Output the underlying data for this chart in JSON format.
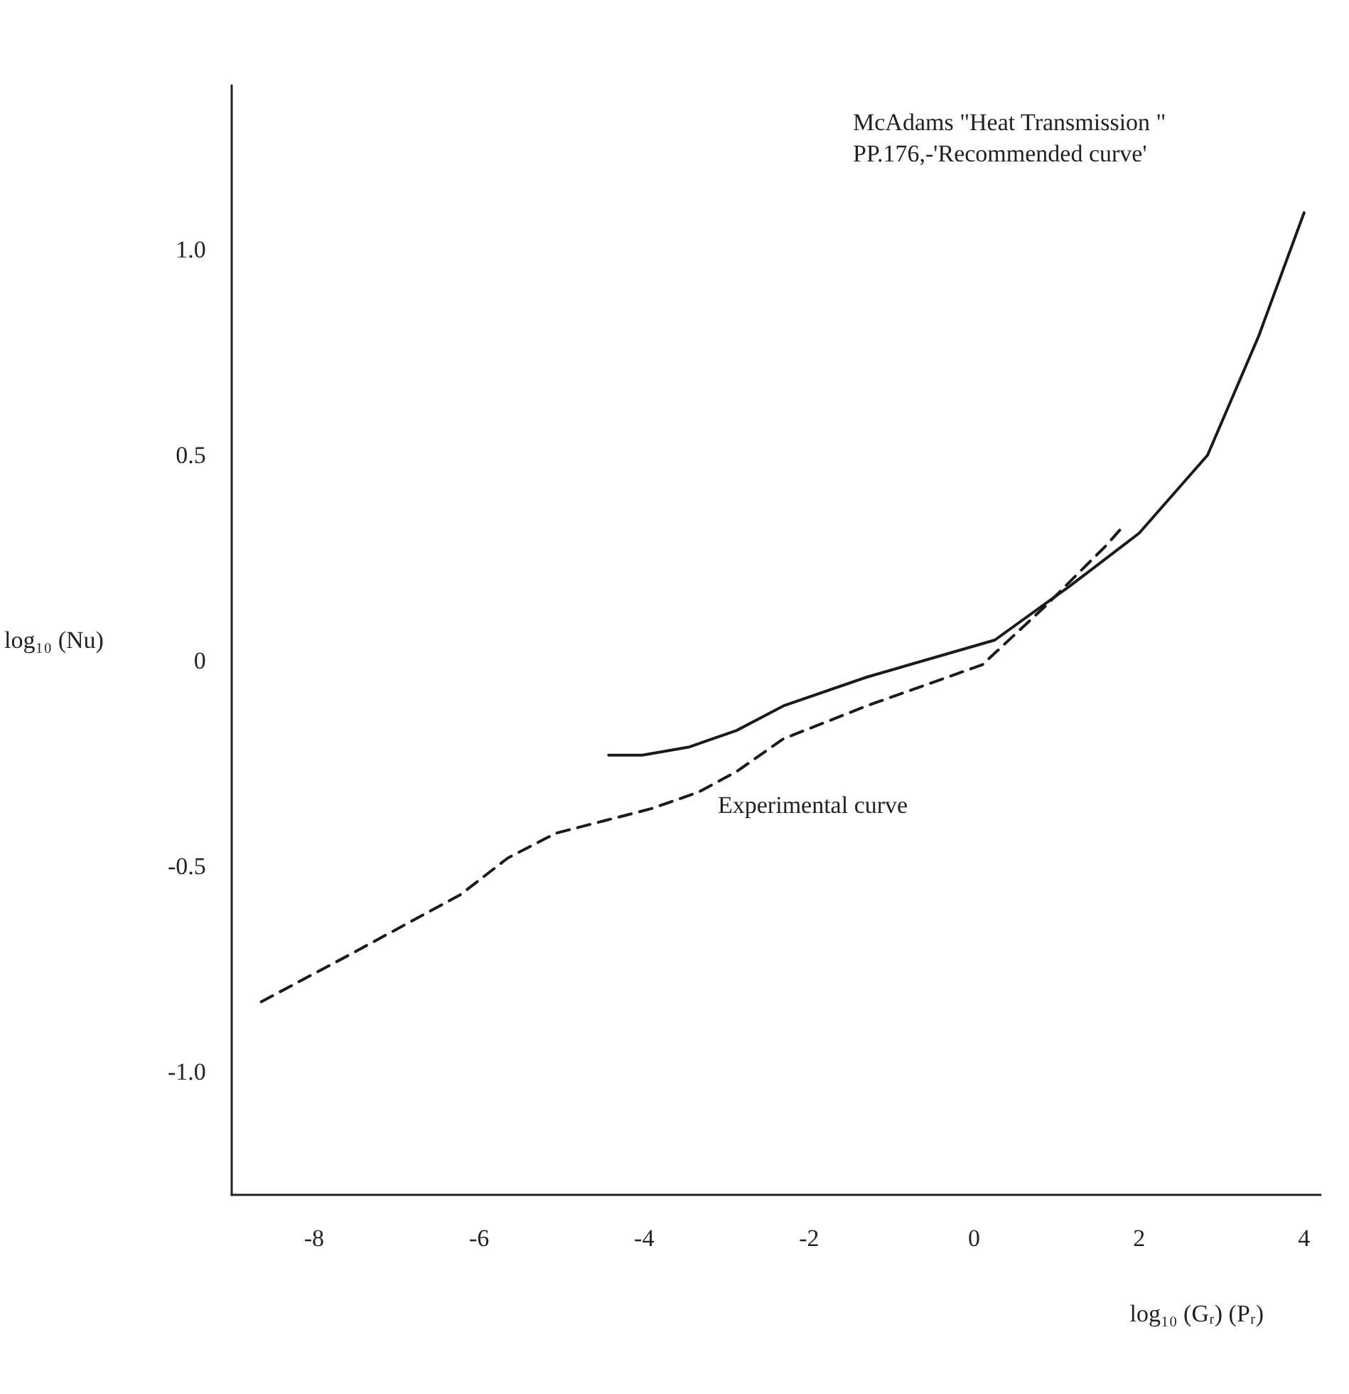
{
  "chart_data": {
    "type": "line",
    "xlabel": "log₁₀ (Gᵣ) (Pᵣ)",
    "ylabel": "log₁₀ (Nu)",
    "xlim": [
      -9,
      4.2
    ],
    "ylim": [
      -1.3,
      1.4
    ],
    "xticks": [
      -8,
      -6,
      -4,
      -2,
      0,
      2,
      4
    ],
    "yticks": [
      {
        "value": 1,
        "label": "1.0"
      },
      {
        "value": 0.5,
        "label": "0.5"
      },
      0,
      {
        "value": -0.5,
        "label": "-0.5"
      },
      {
        "value": -1,
        "label": "-1.0"
      }
    ],
    "grid": false,
    "marker": "none",
    "series": [
      {
        "color": "#1a1a1a",
        "line_style": "solid",
        "x": [
          -4.43,
          -4.02,
          -3.45,
          -2.88,
          -2.31,
          -1.3,
          0.25,
          1.15,
          2,
          2.83,
          3.45,
          4
        ],
        "values": [
          -0.23,
          -0.23,
          -0.21,
          -0.17,
          -0.11,
          -0.04,
          0.05,
          0.18,
          0.31,
          0.5,
          0.79,
          1.09
        ]
      },
      {
        "color": "#1a1a1a",
        "line_style": "dashed",
        "x": [
          -8.64,
          -7.61,
          -6.23,
          -5.65,
          -5.07,
          -4.49,
          -3.91,
          -3.34,
          -2.88,
          -2.31,
          -1.3,
          0.1,
          0.85,
          1.6,
          1.82
        ],
        "values": [
          -0.83,
          -0.72,
          -0.57,
          -0.48,
          -0.42,
          -0.39,
          -0.36,
          -0.32,
          -0.27,
          -0.19,
          -0.11,
          -0.01,
          0.13,
          0.28,
          0.33
        ]
      }
    ],
    "annotations": [
      "McAdams \"Heat Transmission \"\nPP.176,-'Recommended curve'",
      "Experimental curve"
    ]
  }
}
